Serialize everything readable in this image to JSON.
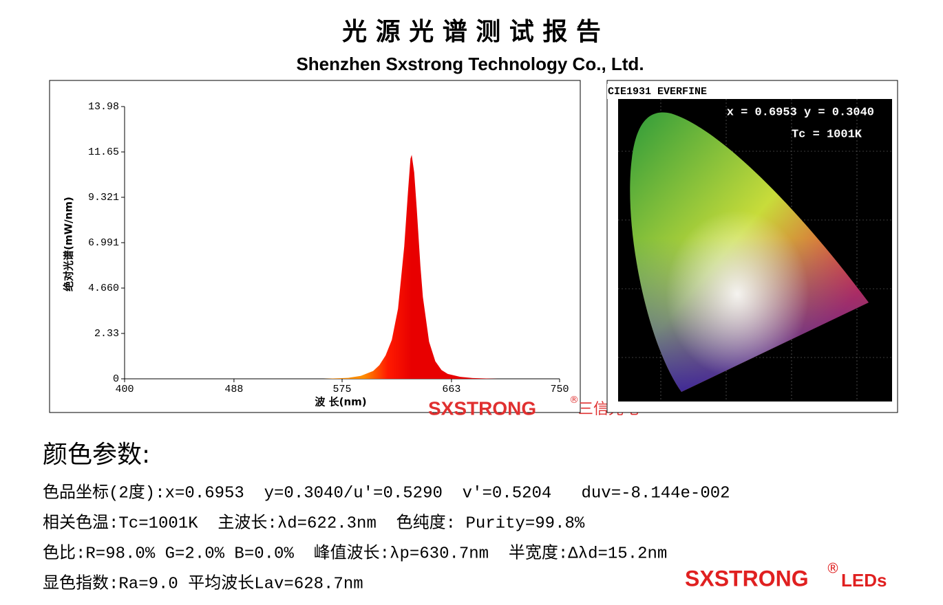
{
  "header": {
    "title": "光 源 光 谱 测 试 报 告",
    "subtitle": "Shenzhen Sxstrong Technology Co., Ltd."
  },
  "chart_data": {
    "type": "area",
    "x_label": "波 长(nm)",
    "y_label": "绝对光谱(mW/nm)",
    "x": [
      400,
      560,
      580,
      590,
      600,
      605,
      610,
      615,
      620,
      625,
      628,
      630,
      631,
      633,
      635,
      638,
      640,
      645,
      650,
      655,
      660,
      670,
      680,
      700,
      750
    ],
    "values": [
      0,
      0,
      0.05,
      0.15,
      0.4,
      0.7,
      1.2,
      2.0,
      3.6,
      6.8,
      9.6,
      11.3,
      11.5,
      10.6,
      8.8,
      5.8,
      4.2,
      1.9,
      0.9,
      0.45,
      0.25,
      0.1,
      0.04,
      0,
      0
    ],
    "colors": [
      "#ff8c00",
      "#ff1a00",
      "#e80000"
    ],
    "xlim": [
      400,
      750
    ],
    "xticks": [
      400,
      488,
      575,
      663,
      750
    ],
    "ylim": [
      0,
      13.98
    ],
    "yticks": [
      0,
      2.33,
      {
        "value": 4.66,
        "label": "4.660"
      },
      6.991,
      9.321,
      11.65,
      13.98
    ]
  },
  "watermark": {
    "brand": "SXSTRONG",
    "reg": "®",
    "cn": "三信光电"
  },
  "cie": {
    "label": "CIE1931 EVERFINE",
    "coords": "x = 0.6953 y = 0.3040",
    "tc": "Tc = 1001K"
  },
  "params": {
    "title": "颜色参数:",
    "lines": [
      "色品坐标(2度):x=0.6953  y=0.3040/u'=0.5290  v'=0.5204   duv=-8.144e-002",
      "相关色温:Tc=1001K  主波长:λd=622.3nm  色纯度: Purity=99.8%",
      "色比:R=98.0% G=2.0% B=0.0%  峰值波长:λp=630.7nm  半宽度:Δλd=15.2nm",
      "显色指数:Ra=9.0 平均波长Lav=628.7nm"
    ]
  },
  "footer": {
    "brand": "SXSTRONG",
    "reg": "®",
    "suffix": "LEDs"
  }
}
